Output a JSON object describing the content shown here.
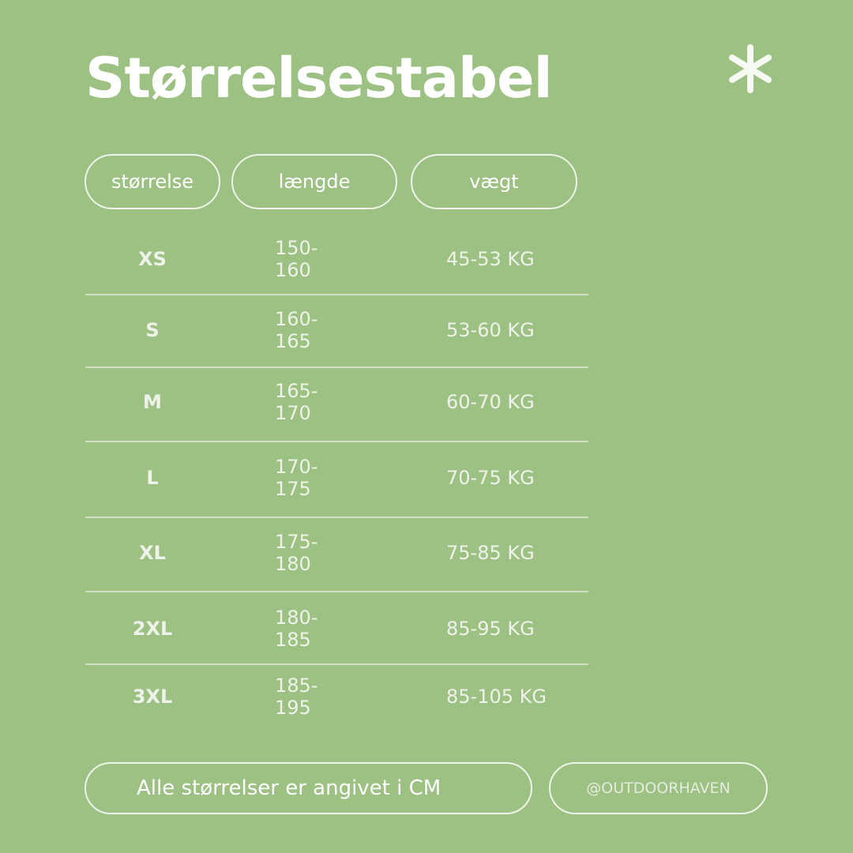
{
  "title": "Størrelsestabel",
  "icons": {
    "decoration": "asterisk-icon"
  },
  "colors": {
    "background": "#9dc183",
    "text": "#ffffff"
  },
  "headers": [
    "størrelse",
    "længde",
    "vægt"
  ],
  "rows": [
    {
      "size": "XS",
      "length": "150-160",
      "weight": "45-53 KG"
    },
    {
      "size": "S",
      "length": "160-165",
      "weight": "53-60 KG"
    },
    {
      "size": "M",
      "length": "165-170",
      "weight": "60-70 KG"
    },
    {
      "size": "L",
      "length": "170-175",
      "weight": "70-75 KG"
    },
    {
      "size": "XL",
      "length": "175-180",
      "weight": "75-85 KG"
    },
    {
      "size": "2XL",
      "length": "180-185",
      "weight": "85-95 KG"
    },
    {
      "size": "3XL",
      "length": "185-195",
      "weight": "85-105 KG"
    }
  ],
  "footer": {
    "note": "Alle størrelser er angivet i CM",
    "handle": "@OUTDOORHAVEN"
  }
}
